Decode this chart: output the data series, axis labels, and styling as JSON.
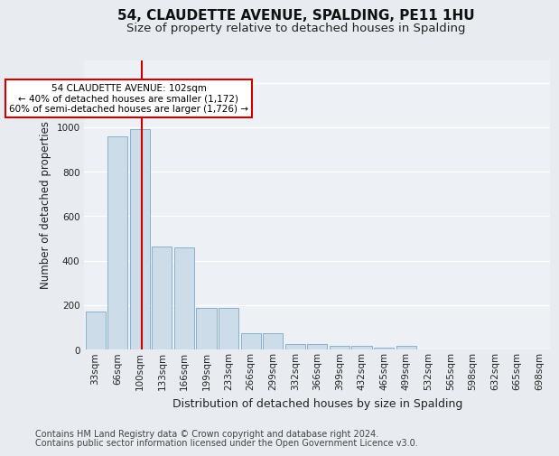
{
  "title_line1": "54, CLAUDETTE AVENUE, SPALDING, PE11 1HU",
  "title_line2": "Size of property relative to detached houses in Spalding",
  "xlabel": "Distribution of detached houses by size in Spalding",
  "ylabel": "Number of detached properties",
  "bar_labels": [
    "33sqm",
    "66sqm",
    "100sqm",
    "133sqm",
    "166sqm",
    "199sqm",
    "233sqm",
    "266sqm",
    "299sqm",
    "332sqm",
    "366sqm",
    "399sqm",
    "432sqm",
    "465sqm",
    "499sqm",
    "532sqm",
    "565sqm",
    "598sqm",
    "632sqm",
    "665sqm",
    "698sqm"
  ],
  "bar_values": [
    170,
    960,
    990,
    465,
    460,
    185,
    185,
    75,
    75,
    25,
    25,
    15,
    15,
    10,
    15,
    0,
    0,
    0,
    0,
    0,
    0
  ],
  "bar_color": "#ccdce8",
  "bar_edge_color": "#7aa8c8",
  "annotation_box_text": "54 CLAUDETTE AVENUE: 102sqm\n← 40% of detached houses are smaller (1,172)\n60% of semi-detached houses are larger (1,726) →",
  "annotation_box_color": "#ffffff",
  "annotation_box_edge_color": "#cc0000",
  "vline_color": "#cc0000",
  "ylim": [
    0,
    1300
  ],
  "yticks": [
    0,
    200,
    400,
    600,
    800,
    1000,
    1200
  ],
  "bg_color": "#e8ecf0",
  "plot_bg_color": "#edf1f5",
  "grid_color": "#ffffff",
  "footer_line1": "Contains HM Land Registry data © Crown copyright and database right 2024.",
  "footer_line2": "Contains public sector information licensed under the Open Government Licence v3.0.",
  "title_fontsize": 11,
  "subtitle_fontsize": 9.5,
  "xlabel_fontsize": 9,
  "ylabel_fontsize": 8.5,
  "tick_fontsize": 7.5,
  "footer_fontsize": 7
}
